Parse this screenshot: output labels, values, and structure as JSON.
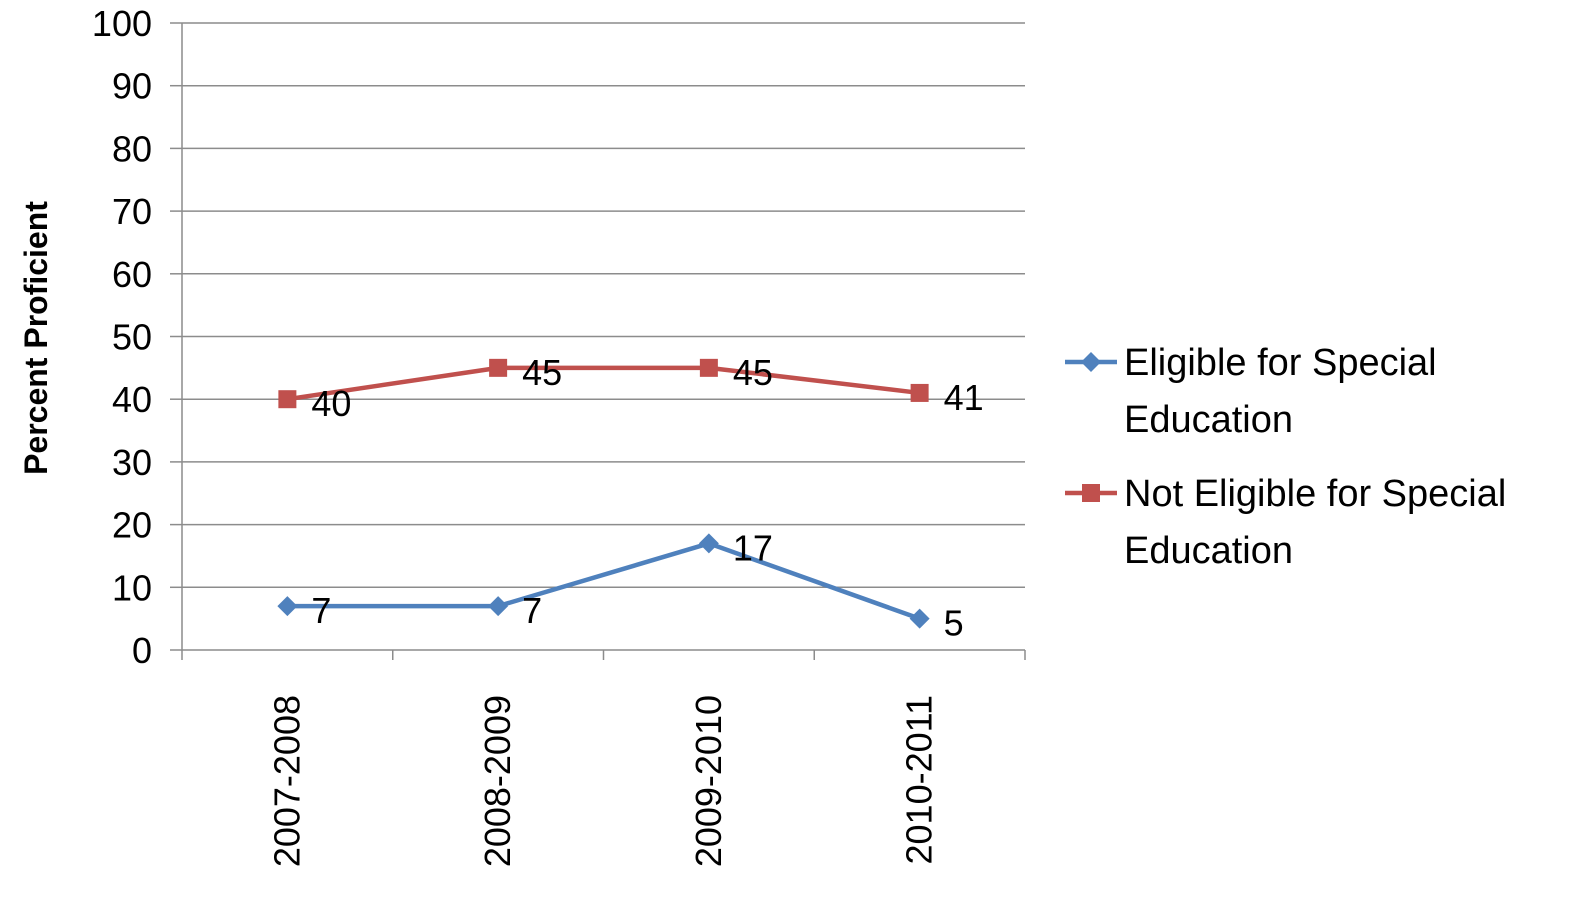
{
  "chart_data": {
    "type": "line",
    "categories": [
      "2007-2008",
      "2008-2009",
      "2009-2010",
      "2010-2011"
    ],
    "series": [
      {
        "name": "Eligible for Special Education",
        "name_lines": [
          "Eligible for Special",
          "Education"
        ],
        "values": [
          7,
          7,
          17,
          5
        ],
        "color": "#4F81BD",
        "marker": "diamond"
      },
      {
        "name": "Not Eligible for Special Education",
        "name_lines": [
          "Not Eligible for Special",
          "Education"
        ],
        "values": [
          40,
          45,
          45,
          41
        ],
        "color": "#C0504D",
        "marker": "square"
      }
    ],
    "title": "",
    "xlabel": "",
    "ylabel": "Percent Proficient",
    "ylim": [
      0,
      100
    ],
    "yticks": [
      0,
      10,
      20,
      30,
      40,
      50,
      60,
      70,
      80,
      90,
      100
    ],
    "grid": true,
    "legend_position": "right",
    "data_labels": true
  }
}
